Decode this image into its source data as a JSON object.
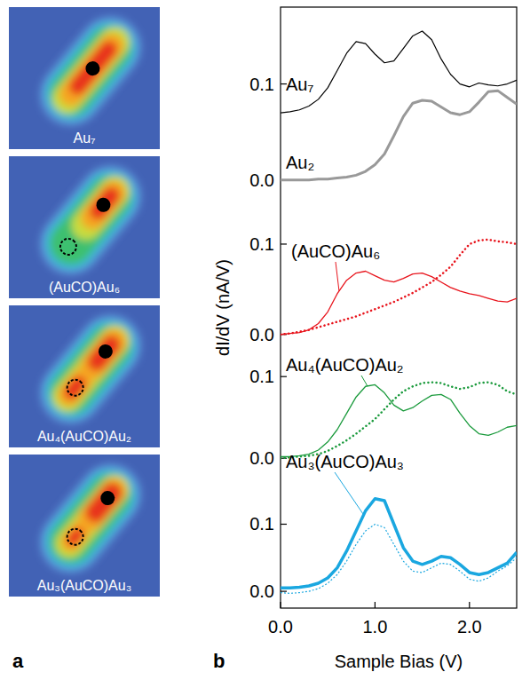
{
  "panel_a": {
    "letter": "a",
    "images": [
      {
        "label": "Au₇"
      },
      {
        "label": "(AuCO)Au₆"
      },
      {
        "label": "Au₄(AuCO)Au₂"
      },
      {
        "label": "Au₃(AuCO)Au₃"
      }
    ]
  },
  "panel_b": {
    "letter": "b",
    "x_label": "Sample Bias (V)",
    "y_label": "dI/dV (nA/V)"
  },
  "chart_data": [
    {
      "type": "line",
      "x": [
        0,
        0.1,
        0.2,
        0.3,
        0.4,
        0.5,
        0.6,
        0.7,
        0.8,
        0.9,
        1.0,
        1.1,
        1.2,
        1.3,
        1.4,
        1.5,
        1.6,
        1.7,
        1.8,
        1.9,
        2.0,
        2.1,
        2.2,
        2.3,
        2.4,
        2.5
      ],
      "xlim": [
        0,
        2.5
      ],
      "ylim": [
        -0.015,
        0.18
      ],
      "yticks": [
        {
          "value": 0,
          "label": "0.0"
        },
        0.1
      ],
      "tick_labels": "y",
      "series": [
        {
          "name": "Au₇",
          "color": "#000000",
          "line_style": "solid",
          "values": [
            0.07,
            0.071,
            0.073,
            0.077,
            0.084,
            0.096,
            0.114,
            0.132,
            0.144,
            0.142,
            0.131,
            0.122,
            0.124,
            0.137,
            0.15,
            0.155,
            0.146,
            0.126,
            0.11,
            0.1,
            0.097,
            0.101,
            0.099,
            0.098,
            0.1,
            0.104
          ]
        },
        {
          "name": "Au₂",
          "color": "#999999",
          "line_style": "solid",
          "values": [
            0,
            0,
            0,
            0,
            0.001,
            0.001,
            0.002,
            0.003,
            0.005,
            0.009,
            0.016,
            0.027,
            0.046,
            0.066,
            0.08,
            0.083,
            0.082,
            0.076,
            0.07,
            0.068,
            0.071,
            0.081,
            0.092,
            0.093,
            0.086,
            0.079
          ]
        }
      ]
    },
    {
      "type": "line",
      "x": [
        0,
        0.1,
        0.2,
        0.3,
        0.4,
        0.5,
        0.6,
        0.7,
        0.8,
        0.9,
        1.0,
        1.1,
        1.2,
        1.3,
        1.4,
        1.5,
        1.6,
        1.7,
        1.8,
        1.9,
        2.0,
        2.1,
        2.2,
        2.3,
        2.4,
        2.5
      ],
      "xlim": [
        0,
        2.5
      ],
      "ylim": [
        -0.015,
        0.155
      ],
      "yticks": [
        {
          "value": 0,
          "label": "0.0"
        },
        0.1
      ],
      "tick_labels": "y",
      "series": [
        {
          "name": "(AuCO)Au₆",
          "color": "#e8141c",
          "line_style": "solid",
          "values": [
            0,
            0.001,
            0.002,
            0.005,
            0.012,
            0.025,
            0.045,
            0.06,
            0.068,
            0.07,
            0.065,
            0.06,
            0.058,
            0.062,
            0.067,
            0.068,
            0.064,
            0.058,
            0.052,
            0.048,
            0.045,
            0.043,
            0.04,
            0.037,
            0.036,
            0.04
          ]
        },
        {
          "color": "#e8141c",
          "line_style": "dotted",
          "values": [
            0,
            0.001,
            0.003,
            0.005,
            0.008,
            0.011,
            0.014,
            0.017,
            0.02,
            0.024,
            0.028,
            0.032,
            0.036,
            0.041,
            0.046,
            0.052,
            0.058,
            0.066,
            0.075,
            0.088,
            0.1,
            0.104,
            0.105,
            0.103,
            0.102,
            0.1
          ]
        }
      ]
    },
    {
      "type": "line",
      "x": [
        0,
        0.1,
        0.2,
        0.3,
        0.4,
        0.5,
        0.6,
        0.7,
        0.8,
        0.9,
        1.0,
        1.1,
        1.2,
        1.3,
        1.4,
        1.5,
        1.6,
        1.7,
        1.8,
        1.9,
        2.0,
        2.1,
        2.2,
        2.3,
        2.4,
        2.5
      ],
      "xlim": [
        0,
        2.5
      ],
      "ylim": [
        -0.015,
        0.135
      ],
      "yticks": [
        {
          "value": 0,
          "label": "0.0"
        },
        0.1
      ],
      "tick_labels": "y",
      "series": [
        {
          "name": "Au₄(AuCO)Au₂",
          "color": "#1a9a3c",
          "line_style": "solid",
          "values": [
            0.002,
            0.002,
            0.003,
            0.005,
            0.01,
            0.02,
            0.035,
            0.055,
            0.075,
            0.088,
            0.09,
            0.08,
            0.065,
            0.058,
            0.062,
            0.07,
            0.077,
            0.078,
            0.072,
            0.055,
            0.04,
            0.03,
            0.028,
            0.032,
            0.038,
            0.04
          ]
        },
        {
          "color": "#1a9a3c",
          "line_style": "dotted",
          "values": [
            0,
            0.001,
            0.002,
            0.003,
            0.005,
            0.009,
            0.015,
            0.022,
            0.03,
            0.039,
            0.048,
            0.06,
            0.072,
            0.082,
            0.088,
            0.092,
            0.093,
            0.092,
            0.088,
            0.085,
            0.087,
            0.092,
            0.093,
            0.09,
            0.082,
            0.078
          ]
        }
      ]
    },
    {
      "type": "line",
      "x": [
        0,
        0.1,
        0.2,
        0.3,
        0.4,
        0.5,
        0.6,
        0.7,
        0.8,
        0.9,
        1.0,
        1.1,
        1.2,
        1.3,
        1.4,
        1.5,
        1.6,
        1.7,
        1.8,
        1.9,
        2.0,
        2.1,
        2.2,
        2.3,
        2.4,
        2.5
      ],
      "xlim": [
        0,
        2.5
      ],
      "ylim": [
        -0.025,
        0.18
      ],
      "yticks": [
        {
          "value": 0,
          "label": "0.0"
        },
        0.1
      ],
      "xticks": [
        {
          "value": 0,
          "label": "0.0"
        },
        {
          "value": 1,
          "label": "1.0"
        },
        {
          "value": 2,
          "label": "2.0"
        }
      ],
      "series": [
        {
          "name": "Au₃(AuCO)Au₃",
          "color": "#1aa7e0",
          "line_style": "solid",
          "values": [
            0.005,
            0.005,
            0.006,
            0.008,
            0.012,
            0.02,
            0.035,
            0.06,
            0.09,
            0.12,
            0.138,
            0.135,
            0.1,
            0.065,
            0.045,
            0.04,
            0.045,
            0.052,
            0.05,
            0.04,
            0.028,
            0.025,
            0.028,
            0.035,
            0.042,
            0.058
          ]
        },
        {
          "color": "#1aa7e0",
          "line_style": "dotted",
          "values": [
            -0.002,
            -0.003,
            -0.002,
            0,
            0.004,
            0.012,
            0.025,
            0.045,
            0.07,
            0.09,
            0.1,
            0.095,
            0.07,
            0.045,
            0.03,
            0.028,
            0.035,
            0.042,
            0.04,
            0.03,
            0.018,
            0.015,
            0.02,
            0.03,
            0.038,
            0.05
          ]
        }
      ]
    }
  ]
}
